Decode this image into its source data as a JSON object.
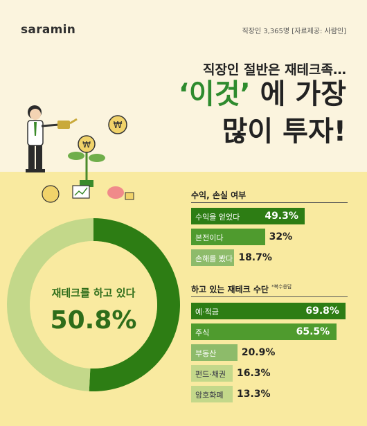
{
  "header": {
    "logo_text": "saramin",
    "meta_text": "직장인 3,365명  [자료제공: 사람인]"
  },
  "title": {
    "line1": "직장인 절반은 재테크족…",
    "line2_highlight": "‘이것’",
    "line2_rest": "에 가장",
    "line3": "많이 투자!"
  },
  "colors": {
    "dark_green": "#2d7d14",
    "mid_green": "#4f9b2e",
    "light_green": "#8dbb6a",
    "pale_green": "#c3d88a",
    "bg_top": "#fbf4de",
    "bg_bottom": "#f9eaa0"
  },
  "chart_data": [
    {
      "type": "pie",
      "label": "재테크를 하고 있다",
      "value_text": "50.8%",
      "slices": [
        {
          "label": "재테크를 하고 있다",
          "value": 50.8
        },
        {
          "label": "",
          "value": 49.2
        }
      ]
    },
    {
      "type": "bar",
      "title": "수익, 손실 여부",
      "categories": [
        "수익을 얻었다",
        "본전이다",
        "손해를 봤다"
      ],
      "values": [
        49.3,
        32,
        18.7
      ],
      "value_labels": [
        "49.3%",
        "32%",
        "18.7%"
      ]
    },
    {
      "type": "bar",
      "title": "하고 있는 재테크 수단",
      "note": "*복수응답",
      "categories": [
        "예·적금",
        "주식",
        "부동산",
        "펀드·채권",
        "암호화폐"
      ],
      "values": [
        69.8,
        65.5,
        20.9,
        16.3,
        13.3
      ],
      "value_labels": [
        "69.8%",
        "65.5%",
        "20.9%",
        "16.3%",
        "13.3%"
      ]
    }
  ]
}
